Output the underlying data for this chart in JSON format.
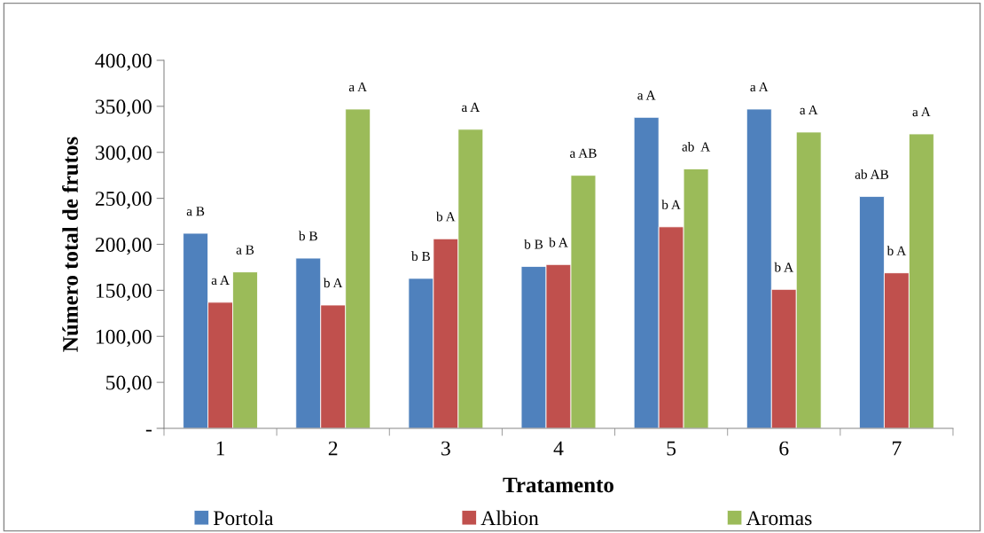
{
  "chart_data": {
    "type": "bar",
    "xlabel": "Tratamento",
    "ylabel": "Número total de frutos",
    "categories": [
      "1",
      "2",
      "3",
      "4",
      "5",
      "6",
      "7"
    ],
    "series": [
      {
        "name": "Portola",
        "color": "#4f81bd",
        "values": [
          212,
          185,
          163,
          176,
          338,
          347,
          252
        ],
        "value_labels": [
          "a B",
          "b B",
          "b B",
          "b B",
          "a A",
          "a A",
          "ab AB"
        ]
      },
      {
        "name": "Albion",
        "color": "#c0504d",
        "values": [
          137,
          134,
          206,
          178,
          219,
          151,
          169
        ],
        "value_labels": [
          "a A",
          "b A",
          "b A",
          "b A",
          "b A",
          "b A",
          "b A"
        ]
      },
      {
        "name": "Aromas",
        "color": "#9bbb59",
        "values": [
          170,
          347,
          325,
          275,
          282,
          322,
          320
        ],
        "value_labels": [
          "a B",
          "a A",
          "a A",
          "a AB",
          "ab  A",
          "a A",
          "a A"
        ]
      }
    ],
    "ylim": [
      0,
      400
    ],
    "yticks": [
      {
        "value": 0,
        "label": "-"
      },
      {
        "value": 50,
        "label": "50,00"
      },
      {
        "value": 100,
        "label": "100,00"
      },
      {
        "value": 150,
        "label": "150,00"
      },
      {
        "value": 200,
        "label": "200,00"
      },
      {
        "value": 250,
        "label": "250,00"
      },
      {
        "value": 300,
        "label": "300,00"
      },
      {
        "value": 350,
        "label": "350,00"
      },
      {
        "value": 400,
        "label": "400,00"
      }
    ],
    "grid": false,
    "legend": "bottom"
  }
}
